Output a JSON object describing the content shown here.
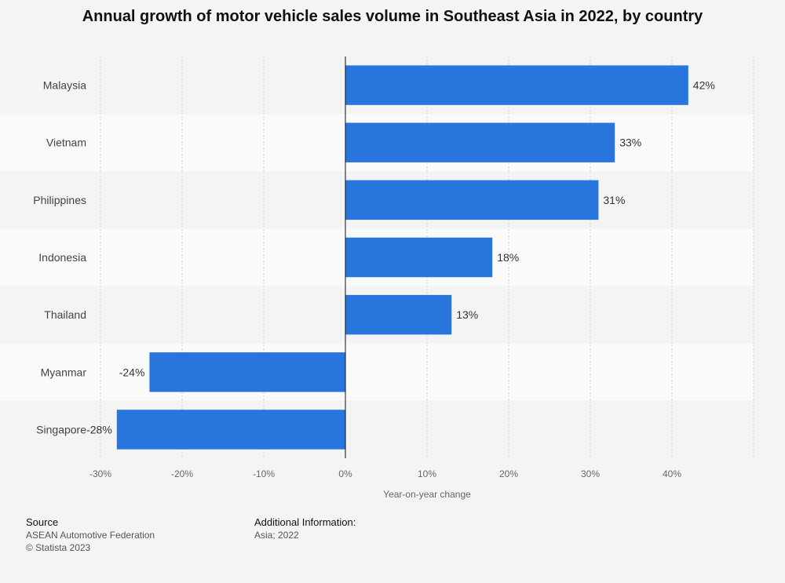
{
  "chart_data": {
    "type": "bar",
    "orientation": "horizontal",
    "title": "Annual growth of motor vehicle sales volume in Southeast Asia in 2022, by country",
    "xlabel": "Year-on-year change",
    "ylabel": "",
    "categories": [
      "Malaysia",
      "Vietnam",
      "Philippines",
      "Indonesia",
      "Thailand",
      "Myanmar",
      "Singapore"
    ],
    "values": [
      42,
      33,
      31,
      18,
      13,
      -24,
      -28
    ],
    "value_labels": [
      "42%",
      "33%",
      "31%",
      "18%",
      "13%",
      "-24%",
      "-28%"
    ],
    "xlim": [
      -30,
      50
    ],
    "xticks": [
      -30,
      -20,
      -10,
      0,
      10,
      20,
      30,
      40
    ],
    "xtick_labels": [
      "-30%",
      "-20%",
      "-10%",
      "0%",
      "10%",
      "20%",
      "30%",
      "40%"
    ],
    "grid": true,
    "bar_color": "#2876dd"
  },
  "footer": {
    "source_heading": "Source",
    "source_lines": [
      "ASEAN Automotive Federation",
      "© Statista 2023"
    ],
    "info_heading": "Additional Information:",
    "info_lines": [
      "Asia; 2022"
    ]
  }
}
